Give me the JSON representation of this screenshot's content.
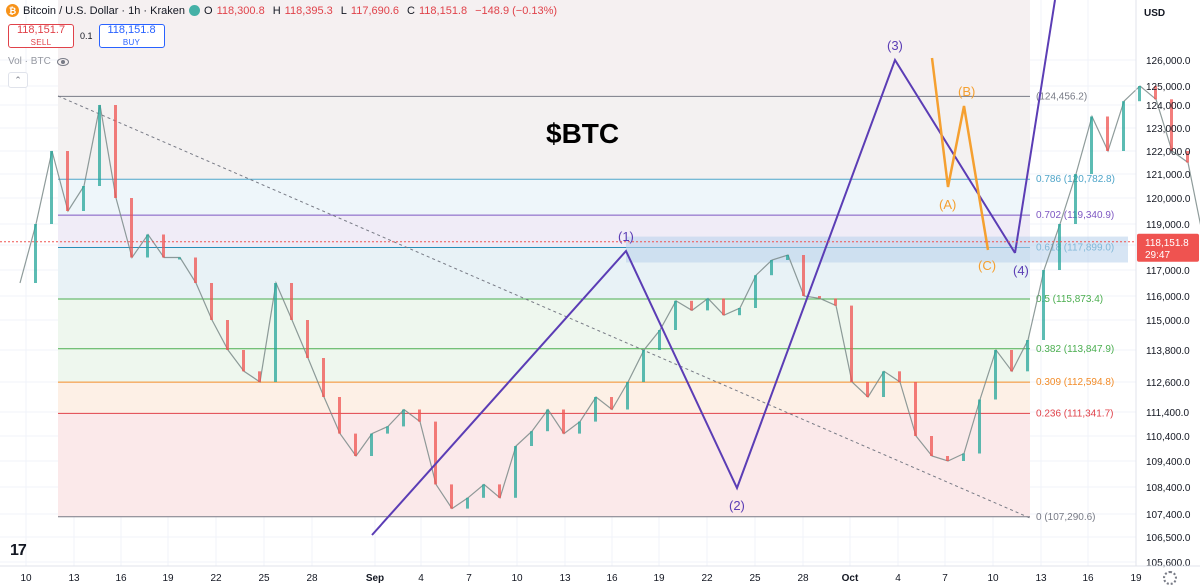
{
  "header": {
    "symbol": "Bitcoin / U.S. Dollar · 1h · Kraken",
    "open_label": "O",
    "open": "118,300.8",
    "high_label": "H",
    "high": "118,395.3",
    "low_label": "L",
    "low": "117,690.6",
    "close_label": "C",
    "close": "118,151.8",
    "change": "−148.9 (−0.13%)",
    "sell_price": "118,151.7",
    "sell_label": "SELL",
    "buy_price": "118,151.8",
    "buy_label": "BUY",
    "quantity": "0.1",
    "volume_label": "Vol · BTC",
    "currency": "USD",
    "collapse_glyph": "⌃"
  },
  "chart_data": {
    "type": "line",
    "title": "$BTC",
    "yaxis": {
      "ticks": [
        "126,000.0",
        "125,000.0",
        "124,000.0",
        "123,000.0",
        "122,000.0",
        "121,000.0",
        "120,000.0",
        "119,000.0",
        "118,000.0",
        "117,000.0",
        "116,000.0",
        "115,000.0",
        "113,800.0",
        "112,600.0",
        "111,400.0",
        "110,400.0",
        "109,400.0",
        "108,400.0",
        "107,400.0",
        "106,500.0",
        "105,600.0"
      ],
      "last_price": "118,151.8",
      "countdown": "29:47"
    },
    "xaxis": {
      "ticks": [
        "10",
        "13",
        "16",
        "19",
        "22",
        "25",
        "28",
        "Sep",
        "4",
        "7",
        "10",
        "13",
        "16",
        "19",
        "22",
        "25",
        "28",
        "Oct",
        "4",
        "7",
        "10",
        "13",
        "16",
        "19"
      ]
    },
    "fib_levels": [
      {
        "ratio": "0",
        "price": 107290.6,
        "label": "0 (107,290.6)",
        "color": "#787b86"
      },
      {
        "ratio": "0.236",
        "price": 111341.7,
        "label": "0.236 (111,341.7)",
        "color": "#e0424a"
      },
      {
        "ratio": "0.309",
        "price": 112594.8,
        "label": "0.309 (112,594.8)",
        "color": "#f28c28"
      },
      {
        "ratio": "0.382",
        "price": 113847.9,
        "label": "0.382 (113,847.9)",
        "color": "#4caf50"
      },
      {
        "ratio": "0.5",
        "price": 115873.4,
        "label": "0.5 (115,873.4)",
        "color": "#4caf50"
      },
      {
        "ratio": "0.618",
        "price": 117899.0,
        "label": "0.618 (117,899.0)",
        "color": "#2a8fb8"
      },
      {
        "ratio": "0.702",
        "price": 119340.9,
        "label": "0.702 (119,340.9)",
        "color": "#7e57c2"
      },
      {
        "ratio": "0.786",
        "price": 120782.8,
        "label": "0.786 (120,782.8)",
        "color": "#4fa5c9"
      },
      {
        "ratio": "1",
        "price": 124456.2,
        "label": "(124,456.2)",
        "color": "#787b86"
      }
    ],
    "elliott_impulse": [
      {
        "label": "",
        "day": 0,
        "price": 106500
      },
      {
        "label": "(1)",
        "day": 15.5,
        "price": 117900
      },
      {
        "label": "(2)",
        "day": 23.5,
        "price": 108400
      },
      {
        "label": "(3)",
        "day": 33.5,
        "price": 126000
      },
      {
        "label": "(4)",
        "day": 40,
        "price": 117800
      }
    ],
    "elliott_correction": [
      {
        "label": "",
        "day": 35,
        "price": 126000
      },
      {
        "label": "(A)",
        "day": 36.7,
        "price": 120500
      },
      {
        "label": "(B)",
        "day": 38,
        "price": 124000
      },
      {
        "label": "(C)",
        "day": 39.3,
        "price": 117600
      }
    ],
    "price_path": [
      {
        "day": -22,
        "price": 116500
      },
      {
        "day": -21,
        "price": 119000
      },
      {
        "day": -20,
        "price": 122000
      },
      {
        "day": -19,
        "price": 119500
      },
      {
        "day": -18,
        "price": 120500
      },
      {
        "day": -17,
        "price": 124000
      },
      {
        "day": -16,
        "price": 120000
      },
      {
        "day": -15,
        "price": 117500
      },
      {
        "day": -14,
        "price": 118500
      },
      {
        "day": -13,
        "price": 117500
      },
      {
        "day": -12,
        "price": 117500
      },
      {
        "day": -11,
        "price": 116500
      },
      {
        "day": -10,
        "price": 115000
      },
      {
        "day": -9,
        "price": 113800
      },
      {
        "day": -8,
        "price": 113000
      },
      {
        "day": -7,
        "price": 112600
      },
      {
        "day": -6,
        "price": 116500
      },
      {
        "day": -5,
        "price": 115000
      },
      {
        "day": -4,
        "price": 113500
      },
      {
        "day": -3,
        "price": 112000
      },
      {
        "day": -2,
        "price": 110500
      },
      {
        "day": -1,
        "price": 109600
      },
      {
        "day": 0,
        "price": 110500
      },
      {
        "day": 1,
        "price": 110800
      },
      {
        "day": 2,
        "price": 111500
      },
      {
        "day": 3,
        "price": 111000
      },
      {
        "day": 4,
        "price": 108500
      },
      {
        "day": 5,
        "price": 107600
      },
      {
        "day": 6,
        "price": 108000
      },
      {
        "day": 7,
        "price": 108500
      },
      {
        "day": 8,
        "price": 108000
      },
      {
        "day": 9,
        "price": 110000
      },
      {
        "day": 10,
        "price": 110600
      },
      {
        "day": 11,
        "price": 111500
      },
      {
        "day": 12,
        "price": 110500
      },
      {
        "day": 13,
        "price": 111000
      },
      {
        "day": 14,
        "price": 112000
      },
      {
        "day": 15,
        "price": 111500
      },
      {
        "day": 16,
        "price": 112600
      },
      {
        "day": 17,
        "price": 113800
      },
      {
        "day": 18,
        "price": 114600
      },
      {
        "day": 19,
        "price": 115800
      },
      {
        "day": 20,
        "price": 115400
      },
      {
        "day": 21,
        "price": 115900
      },
      {
        "day": 22,
        "price": 115200
      },
      {
        "day": 23,
        "price": 115500
      },
      {
        "day": 24,
        "price": 116800
      },
      {
        "day": 25,
        "price": 117400
      },
      {
        "day": 26,
        "price": 117600
      },
      {
        "day": 27,
        "price": 116000
      },
      {
        "day": 28,
        "price": 115900
      },
      {
        "day": 29,
        "price": 115600
      },
      {
        "day": 30,
        "price": 112600
      },
      {
        "day": 31,
        "price": 112000
      },
      {
        "day": 32,
        "price": 113000
      },
      {
        "day": 33,
        "price": 112600
      },
      {
        "day": 34,
        "price": 110400
      },
      {
        "day": 35,
        "price": 109600
      },
      {
        "day": 36,
        "price": 109400
      },
      {
        "day": 37,
        "price": 109700
      },
      {
        "day": 38,
        "price": 111900
      },
      {
        "day": 39,
        "price": 113800
      },
      {
        "day": 40,
        "price": 113000
      },
      {
        "day": 41,
        "price": 114200
      },
      {
        "day": 42,
        "price": 117000
      },
      {
        "day": 43,
        "price": 119000
      },
      {
        "day": 44,
        "price": 121000
      },
      {
        "day": 45,
        "price": 123500
      },
      {
        "day": 46,
        "price": 122000
      },
      {
        "day": 47,
        "price": 124200
      },
      {
        "day": 48,
        "price": 125000
      },
      {
        "day": 49,
        "price": 124300
      },
      {
        "day": 50,
        "price": 122000
      },
      {
        "day": 51,
        "price": 121500
      },
      {
        "day": 52,
        "price": 118151.8
      }
    ]
  }
}
